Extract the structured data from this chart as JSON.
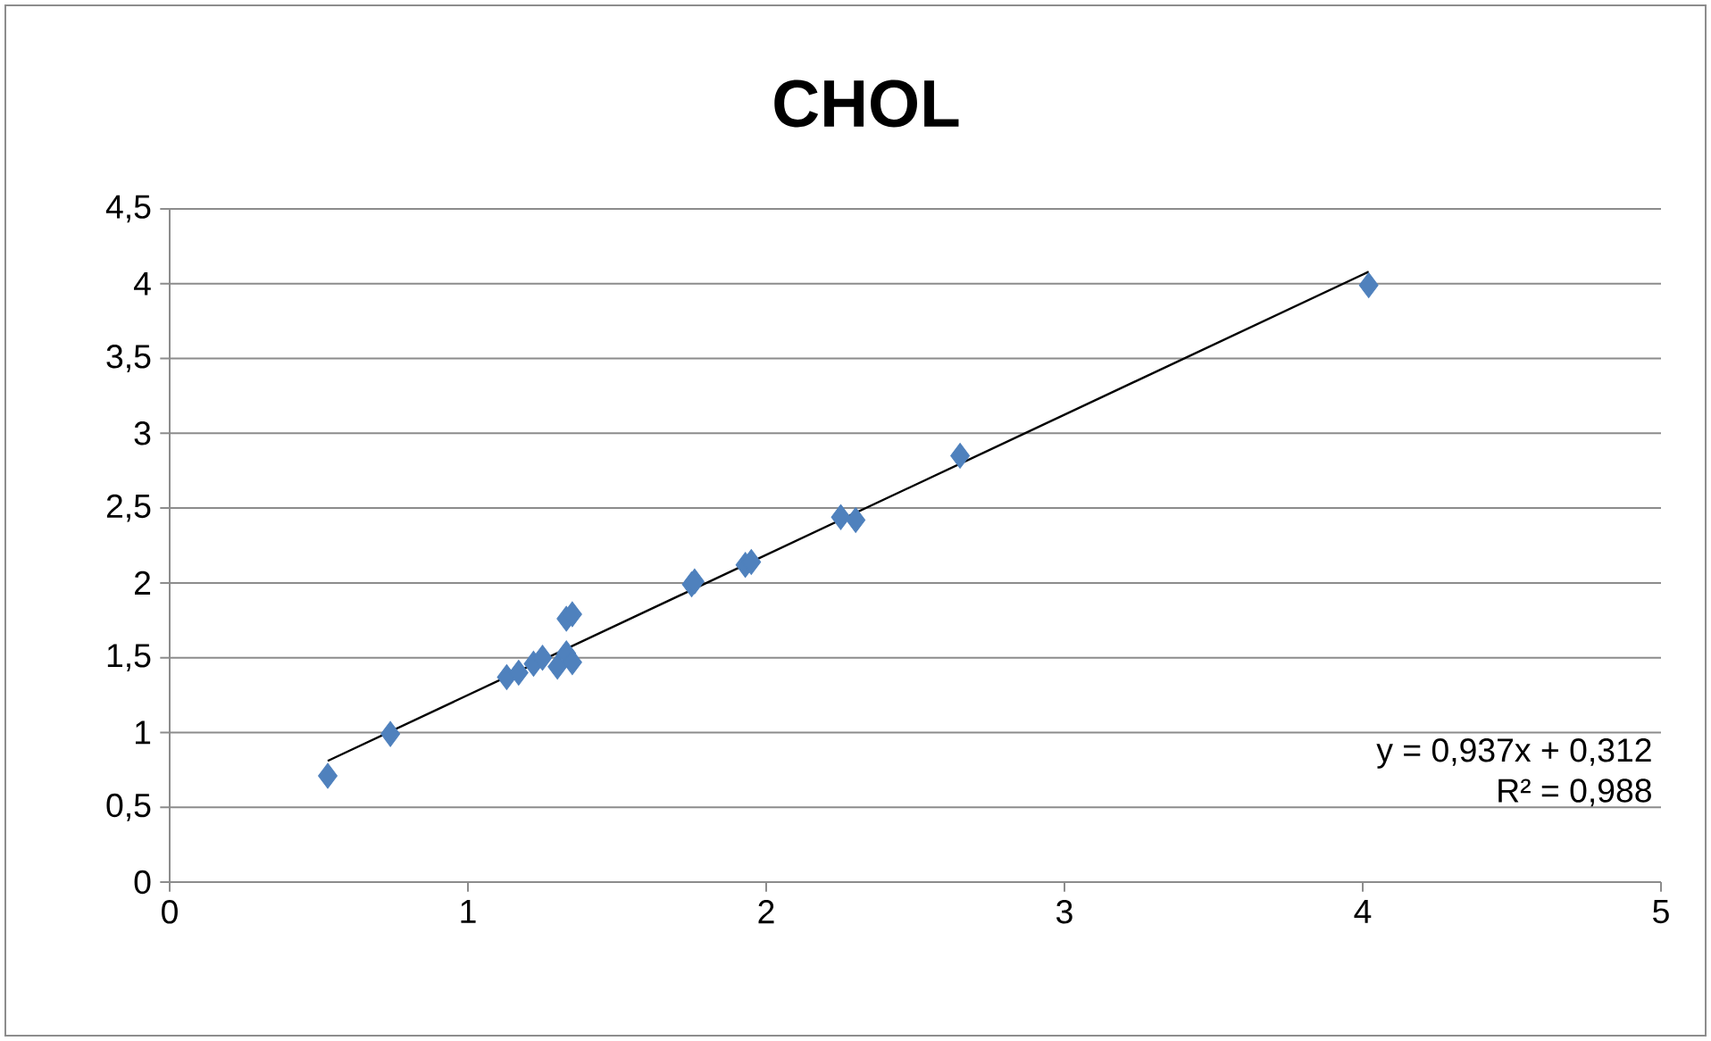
{
  "chart_data": {
    "type": "scatter",
    "title": "CHOL",
    "marker": "diamond",
    "grid": "y",
    "xlim": [
      0,
      5
    ],
    "xticks": [
      0,
      1,
      2,
      3,
      4,
      5
    ],
    "ylim": [
      0,
      4.5
    ],
    "yticks": [
      0,
      {
        "value": 0.5,
        "label": "0,5"
      },
      1,
      {
        "value": 1.5,
        "label": "1,5"
      },
      2,
      {
        "value": 2.5,
        "label": "2,5"
      },
      3,
      {
        "value": 3.5,
        "label": "3,5"
      },
      4,
      {
        "value": 4.5,
        "label": "4,5"
      }
    ],
    "series": [
      {
        "color": "#4f81bd",
        "x": [
          0.53,
          0.74,
          1.13,
          1.17,
          1.22,
          1.25,
          1.3,
          1.33,
          1.35,
          1.33,
          1.35,
          1.75,
          1.76,
          1.93,
          1.95,
          2.25,
          2.3,
          2.65,
          4.02
        ],
        "values": [
          0.71,
          0.99,
          1.37,
          1.4,
          1.46,
          1.5,
          1.44,
          1.53,
          1.47,
          1.76,
          1.79,
          1.99,
          2.01,
          2.12,
          2.14,
          2.44,
          2.42,
          2.85,
          3.99
        ]
      },
      {
        "type": "line",
        "color": "#000000",
        "marker": "none",
        "x": [
          0.53,
          4.02
        ],
        "values": [
          0.81,
          4.08
        ]
      }
    ],
    "annotations": [
      "y = 0,937x + 0,312",
      "R² = 0,988"
    ]
  }
}
